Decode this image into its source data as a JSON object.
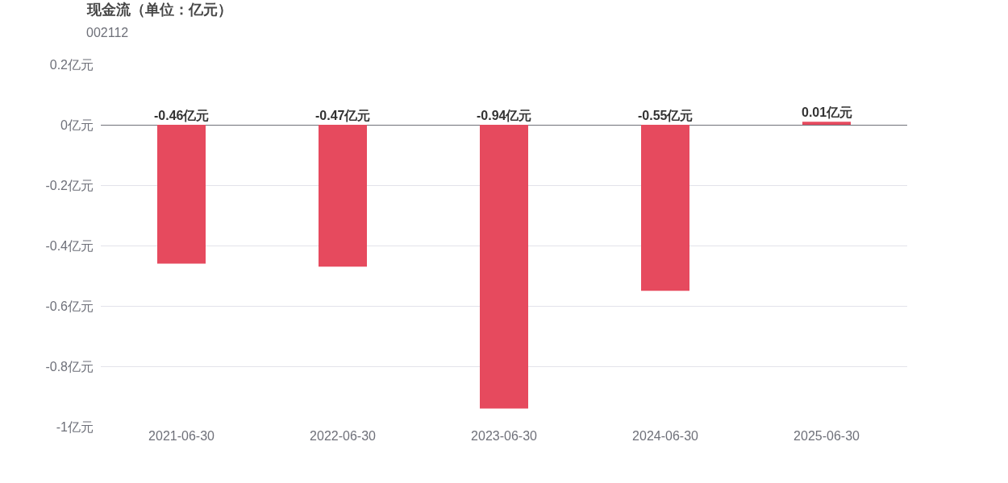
{
  "chart_data": {
    "type": "bar",
    "title": "现金流（单位：亿元）",
    "subtitle": "002112",
    "categories": [
      "2021-06-30",
      "2022-06-30",
      "2023-06-30",
      "2024-06-30",
      "2025-06-30"
    ],
    "values": [
      -0.46,
      -0.47,
      -0.94,
      -0.55,
      0.01
    ],
    "value_labels": [
      "-0.46亿元",
      "-0.47亿元",
      "-0.94亿元",
      "-0.55亿元",
      "0.01亿元"
    ],
    "color": "#e64a5e",
    "ylim": [
      -1,
      0.2
    ],
    "yticks": [
      {
        "value": -1,
        "label": "-1亿元"
      },
      {
        "value": -0.8,
        "label": "-0.8亿元"
      },
      {
        "value": -0.6,
        "label": "-0.6亿元"
      },
      {
        "value": -0.4,
        "label": "-0.4亿元"
      },
      {
        "value": -0.2,
        "label": "-0.2亿元"
      },
      {
        "value": 0,
        "label": "0亿元"
      },
      {
        "value": 0.2,
        "label": "0.2亿元"
      }
    ],
    "grid": "y"
  }
}
